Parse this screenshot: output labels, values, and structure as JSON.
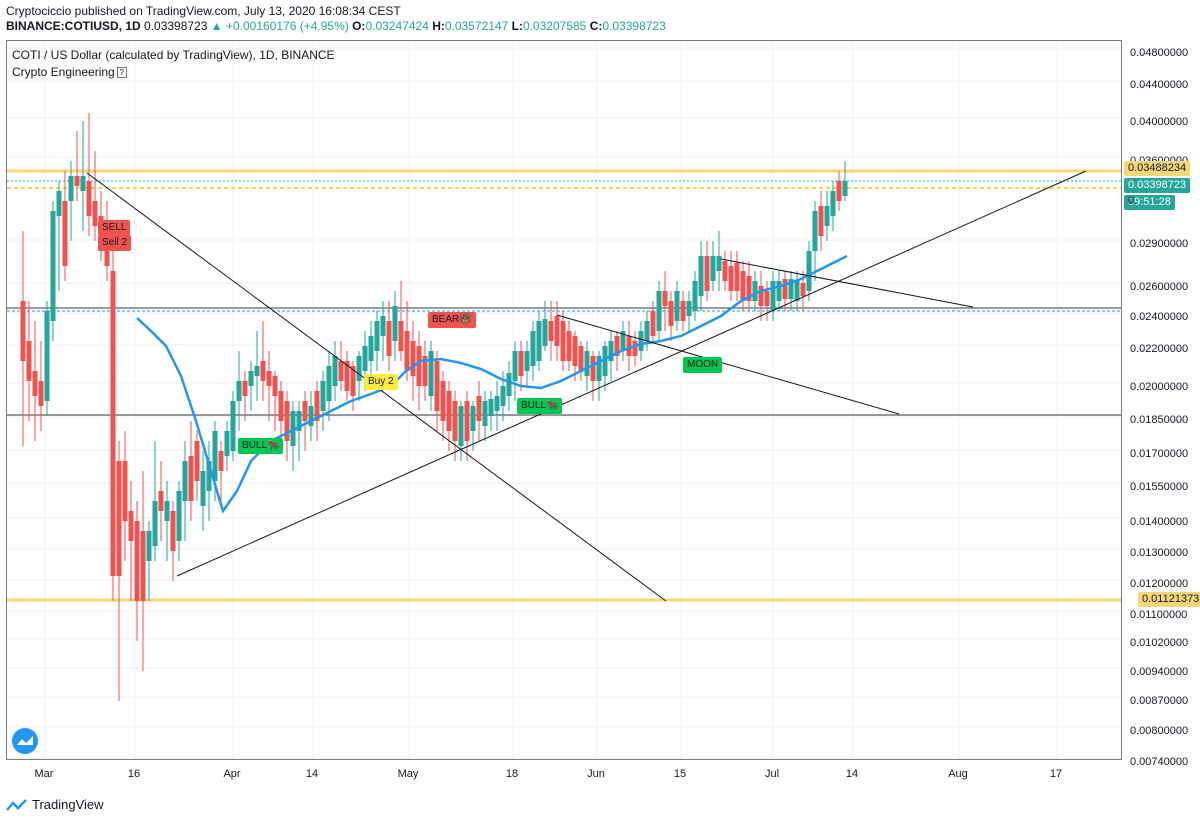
{
  "header": {
    "publish_line": "Cryptociccio published on TradingView.com, July 13, 2020 16:08:34 CEST",
    "symbol": "BINANCE:COTIUSD, 1D",
    "last": "0.03398723",
    "change": "▲ +0.00160176 (+4.95%)",
    "o_label": "O:",
    "o_value": "0.03247424",
    "h_label": "H:",
    "h_value": "0.03572147",
    "l_label": "L:",
    "l_value": "0.03207585",
    "c_label": "C:",
    "c_value": "0.03398723"
  },
  "legend": {
    "title": "COTI / US Dollar (calculated by TradingView), 1D, BINANCE",
    "indicator": "Crypto Engineering",
    "help_glyph": "?"
  },
  "price_axis": {
    "ticks": [
      "0.04800000",
      "0.04400000",
      "0.04000000",
      "0.03600000",
      "0.02900000",
      "0.02600000",
      "0.02400000",
      "0.02200000",
      "0.02000000",
      "0.01850000",
      "0.01700000",
      "0.01550000",
      "0.01400000",
      "0.01300000",
      "0.01200000",
      "0.01100000",
      "0.01020000",
      "0.00940000",
      "0.00870000",
      "0.00800000",
      "0.00740000"
    ],
    "badge_resistance": "0.03488234",
    "badge_last": "0.03398723",
    "badge_countdown": "09:51:28",
    "badge_countdown_prefix": "0.",
    "badge_support": "0.01121373"
  },
  "time_axis": {
    "ticks": [
      "Mar",
      "16",
      "Apr",
      "14",
      "May",
      "18",
      "Jun",
      "15",
      "Jul",
      "14",
      "Aug",
      "17"
    ]
  },
  "signals": {
    "sell": "SELL",
    "sell2": "Sell 2",
    "bear": "BEAR🐻",
    "buy2": "Buy 2",
    "bull1": "BULL🐂",
    "bull2": "BULL🐂",
    "moon": "MOON"
  },
  "footer": {
    "brand": "TradingView"
  },
  "colors": {
    "up": "#26a69a",
    "down": "#ef5350",
    "ma": "#2196f3",
    "resistance": "#f9d776",
    "signal_red": "#ef5350",
    "signal_green": "#00c853",
    "signal_yellow": "#ffeb3b"
  },
  "chart_data": {
    "type": "candlestick",
    "symbol": "BINANCE:COTIUSD",
    "interval": "1D",
    "x_range": [
      "2020-02-27",
      "2020-09-01"
    ],
    "y_scale": "log",
    "ylim": [
      0.0074,
      0.048
    ],
    "horizontal_levels": [
      0.03488234,
      0.03398723,
      0.024,
      0.0185,
      0.01121373
    ],
    "last_price": 0.03398723,
    "ohlc_last": {
      "open": 0.03247424,
      "high": 0.03572147,
      "low": 0.03207585,
      "close": 0.03398723
    }
  }
}
